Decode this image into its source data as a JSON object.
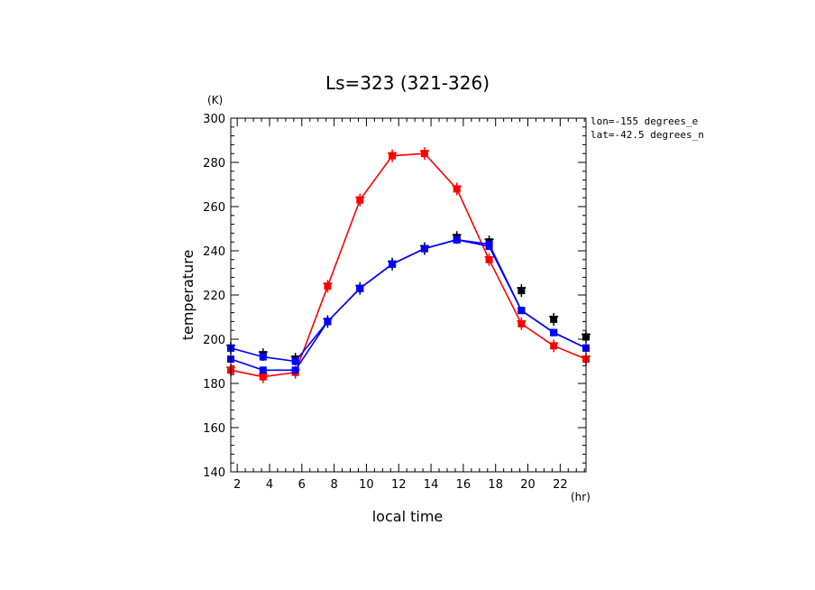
{
  "chart_data": {
    "type": "line",
    "title": "Ls=323 (321-326)",
    "xlabel": "local time",
    "ylabel": "temperature",
    "x_unit": "(hr)",
    "y_unit": "(K)",
    "xlim": [
      1.6,
      23.6
    ],
    "ylim": [
      140,
      300
    ],
    "x_ticks": [
      2,
      4,
      6,
      8,
      10,
      12,
      14,
      16,
      18,
      20,
      22
    ],
    "y_ticks": [
      140,
      160,
      180,
      200,
      220,
      240,
      260,
      280,
      300
    ],
    "annotations": [
      "lon=-155 degrees_e",
      "lat=-42.5 degrees_n"
    ],
    "x": [
      1.6,
      3.6,
      5.6,
      7.6,
      9.6,
      11.6,
      13.6,
      15.6,
      17.6,
      19.6,
      21.6,
      23.6
    ],
    "series": [
      {
        "color": "#ff0000",
        "values": [
          186,
          183,
          185,
          224,
          263,
          283,
          284,
          268,
          236,
          207,
          197,
          191
        ]
      },
      {
        "color": "#0000ff",
        "values": [
          196,
          192,
          190,
          208,
          223,
          234,
          241,
          245,
          243,
          213,
          203,
          196
        ]
      },
      {
        "color": "#0000ff",
        "values": [
          191,
          186,
          186,
          208,
          223,
          234,
          241,
          245,
          242,
          213,
          203,
          196
        ]
      }
    ],
    "markers": [
      {
        "color": "#000000",
        "values": [
          196,
          193,
          191,
          208,
          223,
          234,
          241,
          246,
          244,
          222,
          209,
          201
        ]
      }
    ]
  }
}
